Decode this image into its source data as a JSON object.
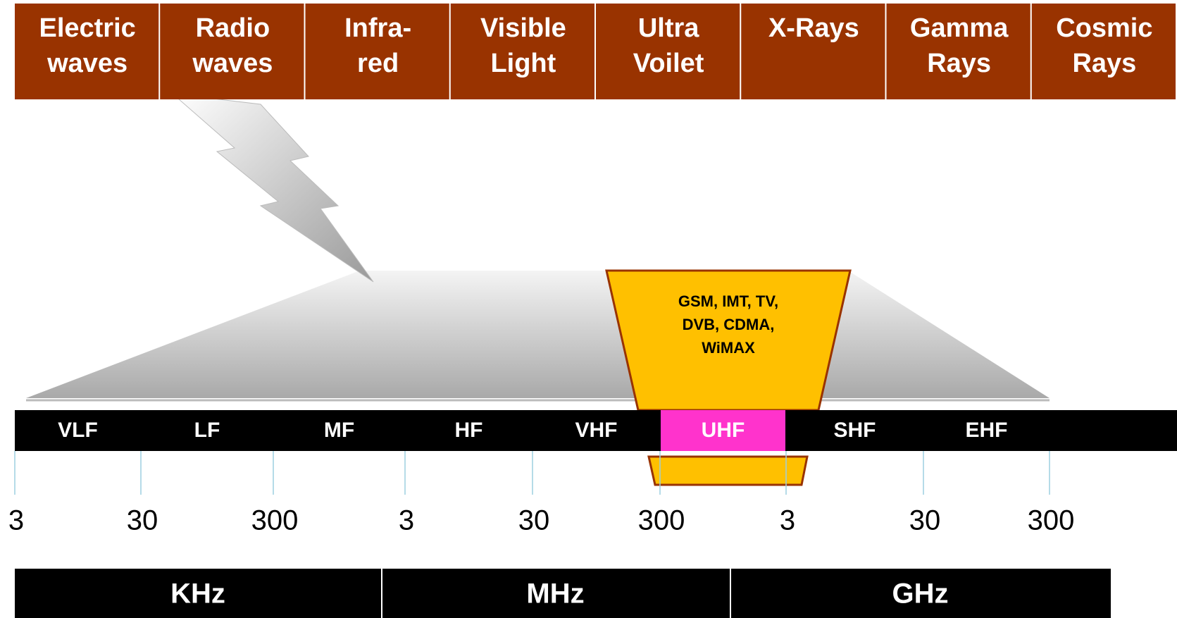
{
  "spectrum": [
    {
      "lines": [
        "Electric",
        "waves"
      ]
    },
    {
      "lines": [
        "Radio",
        "waves"
      ]
    },
    {
      "lines": [
        "Infra-",
        "red"
      ]
    },
    {
      "lines": [
        "Visible",
        "Light"
      ]
    },
    {
      "lines": [
        "Ultra",
        "Voilet"
      ]
    },
    {
      "lines": [
        "X-Rays"
      ]
    },
    {
      "lines": [
        "Gamma",
        "Rays"
      ]
    },
    {
      "lines": [
        "Cosmic",
        "Rays"
      ]
    }
  ],
  "bands": [
    "VLF",
    "LF",
    "MF",
    "HF",
    "VHF",
    "UHF",
    "SHF",
    "EHF"
  ],
  "ticks": [
    "3",
    "30",
    "300",
    "3",
    "30",
    "300",
    "3",
    "30",
    "300"
  ],
  "units": [
    "KHz",
    "MHz",
    "GHz"
  ],
  "callout": [
    "GSM, IMT, TV,",
    "DVB, CDMA,",
    "WiMAX"
  ]
}
